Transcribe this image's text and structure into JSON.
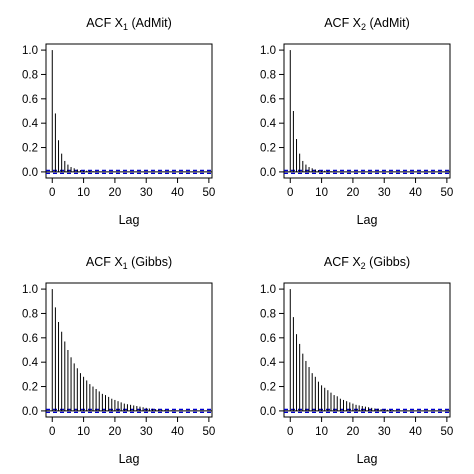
{
  "chart_data": [
    {
      "type": "bar",
      "subtype": "acf",
      "title": "ACF X₁ (AdMit)",
      "xlabel": "Lag",
      "ylabel": "",
      "xlim": [
        -2,
        51
      ],
      "ylim": [
        -0.05,
        1.05
      ],
      "xticks": [
        "0",
        "10",
        "20",
        "30",
        "40",
        "50"
      ],
      "yticks": [
        "0.0",
        "0.2",
        "0.4",
        "0.6",
        "0.8",
        "1.0"
      ],
      "lags": [
        0,
        1,
        2,
        3,
        4,
        5,
        6,
        7,
        8,
        9,
        10,
        11,
        12,
        13,
        14,
        15,
        16,
        17,
        18,
        19,
        20,
        21,
        22,
        23,
        24,
        25,
        26,
        27,
        28,
        29,
        30,
        31,
        32,
        33,
        34,
        35,
        36,
        37,
        38,
        39,
        40,
        41,
        42,
        43,
        44,
        45,
        46,
        47,
        48,
        49,
        50
      ],
      "values": [
        1.0,
        0.48,
        0.26,
        0.15,
        0.09,
        0.06,
        0.04,
        0.03,
        0.02,
        0.015,
        0.01,
        0.01,
        0.008,
        0.006,
        0.005,
        0.004,
        0.003,
        0.003,
        0.002,
        0.002,
        0.002,
        0.001,
        0.001,
        0.001,
        0.001,
        0.001,
        0,
        0,
        0,
        0,
        0,
        0,
        0,
        0,
        0,
        0,
        0,
        0,
        0,
        0,
        0,
        0,
        0,
        0,
        0,
        0,
        0,
        0,
        0,
        0,
        0
      ],
      "confidence_band": 0.012,
      "colors": {
        "bars": "#000000",
        "band": "#0000cc",
        "zero": "#000000"
      }
    },
    {
      "type": "bar",
      "subtype": "acf",
      "title": "ACF X₂ (AdMit)",
      "xlabel": "Lag",
      "ylabel": "",
      "xlim": [
        -2,
        51
      ],
      "ylim": [
        -0.05,
        1.05
      ],
      "xticks": [
        "0",
        "10",
        "20",
        "30",
        "40",
        "50"
      ],
      "yticks": [
        "0.0",
        "0.2",
        "0.4",
        "0.6",
        "0.8",
        "1.0"
      ],
      "lags": [
        0,
        1,
        2,
        3,
        4,
        5,
        6,
        7,
        8,
        9,
        10,
        11,
        12,
        13,
        14,
        15,
        16,
        17,
        18,
        19,
        20,
        21,
        22,
        23,
        24,
        25,
        26,
        27,
        28,
        29,
        30,
        31,
        32,
        33,
        34,
        35,
        36,
        37,
        38,
        39,
        40,
        41,
        42,
        43,
        44,
        45,
        46,
        47,
        48,
        49,
        50
      ],
      "values": [
        1.0,
        0.5,
        0.27,
        0.15,
        0.09,
        0.06,
        0.04,
        0.03,
        0.02,
        0.015,
        0.01,
        0.01,
        0.008,
        0.006,
        0.005,
        0.004,
        0.003,
        0.003,
        0.002,
        0.002,
        0.002,
        0.001,
        0.001,
        0.001,
        0.001,
        0.001,
        0,
        0,
        0,
        0,
        0,
        0,
        0,
        0,
        0,
        0,
        0,
        0,
        0,
        0,
        0,
        0,
        0,
        0,
        0,
        0,
        0,
        0,
        0,
        0,
        0
      ],
      "confidence_band": 0.012,
      "colors": {
        "bars": "#000000",
        "band": "#0000cc",
        "zero": "#000000"
      }
    },
    {
      "type": "bar",
      "subtype": "acf",
      "title": "ACF X₁ (Gibbs)",
      "xlabel": "Lag",
      "ylabel": "",
      "xlim": [
        -2,
        51
      ],
      "ylim": [
        -0.05,
        1.05
      ],
      "xticks": [
        "0",
        "10",
        "20",
        "30",
        "40",
        "50"
      ],
      "yticks": [
        "0.0",
        "0.2",
        "0.4",
        "0.6",
        "0.8",
        "1.0"
      ],
      "lags": [
        0,
        1,
        2,
        3,
        4,
        5,
        6,
        7,
        8,
        9,
        10,
        11,
        12,
        13,
        14,
        15,
        16,
        17,
        18,
        19,
        20,
        21,
        22,
        23,
        24,
        25,
        26,
        27,
        28,
        29,
        30,
        31,
        32,
        33,
        34,
        35,
        36,
        37,
        38,
        39,
        40,
        41,
        42,
        43,
        44,
        45,
        46,
        47,
        48,
        49,
        50
      ],
      "values": [
        1.0,
        0.85,
        0.73,
        0.65,
        0.57,
        0.5,
        0.44,
        0.39,
        0.35,
        0.31,
        0.28,
        0.25,
        0.22,
        0.2,
        0.18,
        0.16,
        0.14,
        0.13,
        0.115,
        0.1,
        0.09,
        0.08,
        0.07,
        0.06,
        0.055,
        0.05,
        0.045,
        0.04,
        0.035,
        0.03,
        0.025,
        0.02,
        0.018,
        0.015,
        0.012,
        0.01,
        0.008,
        0.006,
        0.005,
        0.004,
        0.003,
        0.003,
        0.002,
        0.002,
        0.001,
        0.001,
        0.001,
        0.001,
        0.001,
        0,
        0
      ],
      "confidence_band": 0.012,
      "colors": {
        "bars": "#000000",
        "band": "#0000cc",
        "zero": "#000000"
      }
    },
    {
      "type": "bar",
      "subtype": "acf",
      "title": "ACF X₂ (Gibbs)",
      "xlabel": "Lag",
      "ylabel": "",
      "xlim": [
        -2,
        51
      ],
      "ylim": [
        -0.05,
        1.05
      ],
      "xticks": [
        "0",
        "10",
        "20",
        "30",
        "40",
        "50"
      ],
      "yticks": [
        "0.0",
        "0.2",
        "0.4",
        "0.6",
        "0.8",
        "1.0"
      ],
      "lags": [
        0,
        1,
        2,
        3,
        4,
        5,
        6,
        7,
        8,
        9,
        10,
        11,
        12,
        13,
        14,
        15,
        16,
        17,
        18,
        19,
        20,
        21,
        22,
        23,
        24,
        25,
        26,
        27,
        28,
        29,
        30,
        31,
        32,
        33,
        34,
        35,
        36,
        37,
        38,
        39,
        40,
        41,
        42,
        43,
        44,
        45,
        46,
        47,
        48,
        49,
        50
      ],
      "values": [
        1.0,
        0.77,
        0.63,
        0.55,
        0.47,
        0.41,
        0.36,
        0.31,
        0.28,
        0.24,
        0.21,
        0.19,
        0.17,
        0.15,
        0.13,
        0.12,
        0.1,
        0.09,
        0.08,
        0.07,
        0.06,
        0.05,
        0.045,
        0.04,
        0.035,
        0.03,
        0.025,
        0.02,
        0.018,
        0.015,
        0.012,
        0.01,
        0.008,
        0.006,
        0.005,
        0.004,
        0.003,
        0.003,
        0.002,
        0.002,
        0.001,
        0.001,
        0.001,
        0.001,
        0.001,
        0,
        0,
        0,
        0,
        0,
        0
      ],
      "confidence_band": 0.012,
      "colors": {
        "bars": "#000000",
        "band": "#0000cc",
        "zero": "#000000"
      }
    }
  ]
}
